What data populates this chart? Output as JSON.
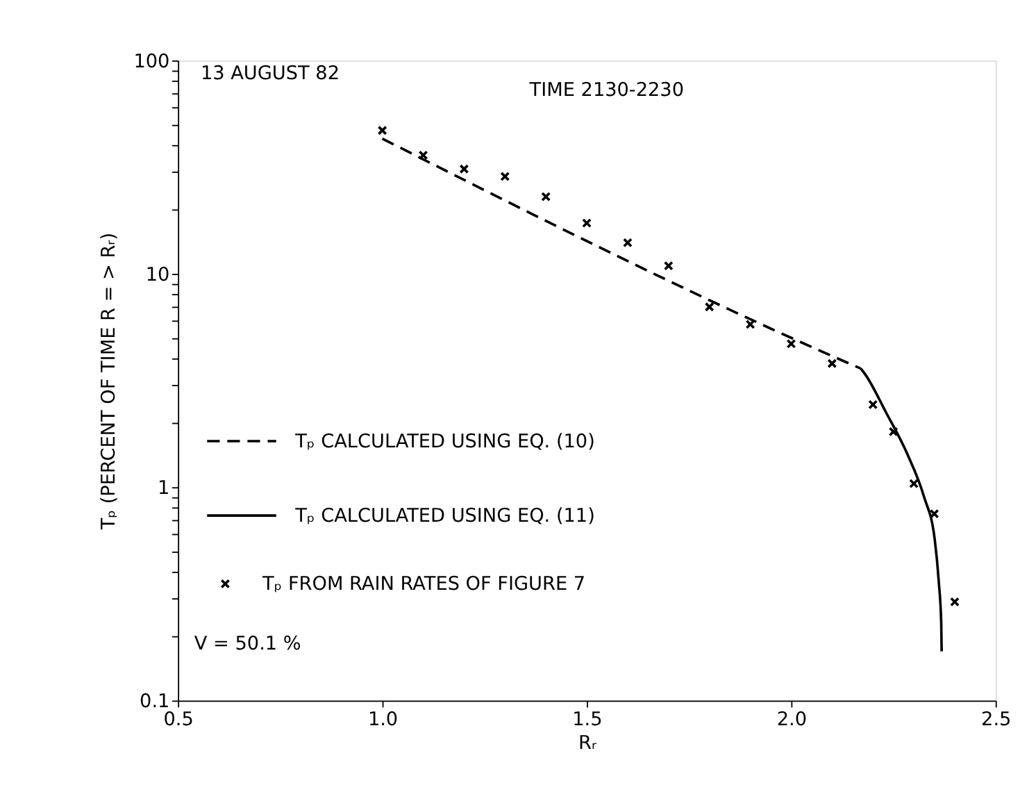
{
  "chart_data": {
    "type": "line",
    "title": "13 AUGUST 82",
    "xlabel": "Rᵣ",
    "ylabel": "Tₚ (PERCENT OF TIME R = > Rᵣ)",
    "annotations": [
      "TIME 2130-2230",
      "V = 50.1 %"
    ],
    "series": [
      {
        "name": "Tₚ CALCULATED USING EQ. (10)",
        "type": "line",
        "line_style": "dashed",
        "color": "#000000",
        "x": [
          1.0,
          2.09,
          2.17
        ],
        "values": [
          43,
          4.2,
          3.6
        ]
      },
      {
        "name": "Tₚ CALCULATED USING EQ. (11)",
        "type": "line",
        "line_style": "solid",
        "color": "#000000",
        "x": [
          2.17,
          2.181,
          2.232,
          2.284,
          2.325,
          2.351,
          2.361,
          2.367,
          2.368
        ],
        "values": [
          3.6,
          3.38,
          2.24,
          1.43,
          0.9,
          0.57,
          0.36,
          0.23,
          0.17
        ]
      },
      {
        "name": "Tₚ FROM RAIN RATES OF FIGURE 7",
        "type": "scatter",
        "marker": "cross",
        "color": "#000000",
        "x": [
          1.0,
          1.1,
          1.2,
          1.3,
          1.4,
          1.5,
          1.6,
          1.7,
          1.8,
          1.9,
          2.0,
          2.1,
          2.2,
          2.25,
          2.3,
          2.35,
          2.4
        ],
        "values": [
          47,
          36,
          31,
          28.6,
          23,
          17.3,
          14,
          10.9,
          7.0,
          5.8,
          4.7,
          3.8,
          2.44,
          1.82,
          1.04,
          0.75,
          0.29
        ]
      }
    ],
    "xlim": [
      0.5,
      2.5
    ],
    "xticks": [
      {
        "value": 0.5,
        "label": "0.5"
      },
      {
        "value": 1.0,
        "label": "1.0"
      },
      {
        "value": 1.5,
        "label": "1.5"
      },
      {
        "value": 2.0,
        "label": "2.0"
      },
      {
        "value": 2.5,
        "label": "2.5"
      }
    ],
    "ylim": [
      0.1,
      100
    ],
    "log": "y",
    "yticks": [
      {
        "value": 0.1,
        "label": "0.1"
      },
      {
        "value": 0.2,
        "label": null
      },
      {
        "value": 0.3,
        "label": null
      },
      {
        "value": 0.4,
        "label": null
      },
      {
        "value": 0.5,
        "label": null
      },
      {
        "value": 0.6,
        "label": null
      },
      {
        "value": 0.7,
        "label": null
      },
      {
        "value": 0.8,
        "label": null
      },
      {
        "value": 0.9,
        "label": null
      },
      {
        "value": 1,
        "label": "1"
      },
      {
        "value": 2,
        "label": null
      },
      {
        "value": 3,
        "label": null
      },
      {
        "value": 4,
        "label": null
      },
      {
        "value": 5,
        "label": null
      },
      {
        "value": 6,
        "label": null
      },
      {
        "value": 7,
        "label": null
      },
      {
        "value": 8,
        "label": null
      },
      {
        "value": 9,
        "label": null
      },
      {
        "value": 10,
        "label": "10"
      },
      {
        "value": 20,
        "label": null
      },
      {
        "value": 30,
        "label": null
      },
      {
        "value": 40,
        "label": null
      },
      {
        "value": 50,
        "label": null
      },
      {
        "value": 60,
        "label": null
      },
      {
        "value": 70,
        "label": null
      },
      {
        "value": 80,
        "label": null
      },
      {
        "value": 90,
        "label": null
      },
      {
        "value": 100,
        "label": "100"
      }
    ],
    "grid": false,
    "legend": "left"
  }
}
